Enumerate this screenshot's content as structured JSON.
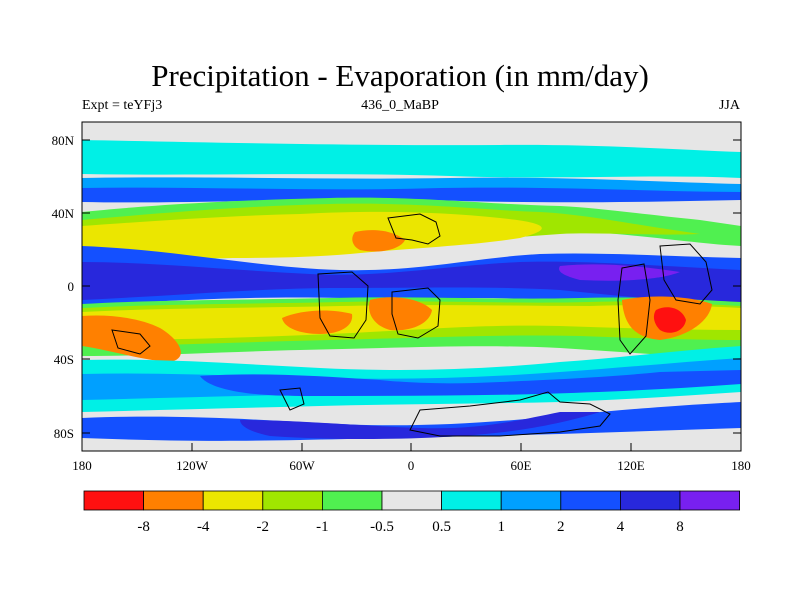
{
  "title": "Precipitation - Evaporation (in mm/day)",
  "subtitle_left": "Expt = teYFj3",
  "subtitle_center": "436_0_MaBP",
  "subtitle_right": "JJA",
  "lon_ticks": [
    "180",
    "120W",
    "60W",
    "0",
    "60E",
    "120E",
    "180"
  ],
  "lat_ticks": [
    "80N",
    "40N",
    "0",
    "40S",
    "80S"
  ],
  "colorbar": {
    "colors": [
      "#ff1010",
      "#ff8000",
      "#ebe600",
      "#a0e600",
      "#50f050",
      "#e6e6e6",
      "#00f0e6",
      "#00a0ff",
      "#1450ff",
      "#2828dc",
      "#7820f0"
    ],
    "labels": [
      "-8",
      "-4",
      "-2",
      "-1",
      "-0.5",
      "0.5",
      "1",
      "2",
      "4",
      "8"
    ]
  }
}
